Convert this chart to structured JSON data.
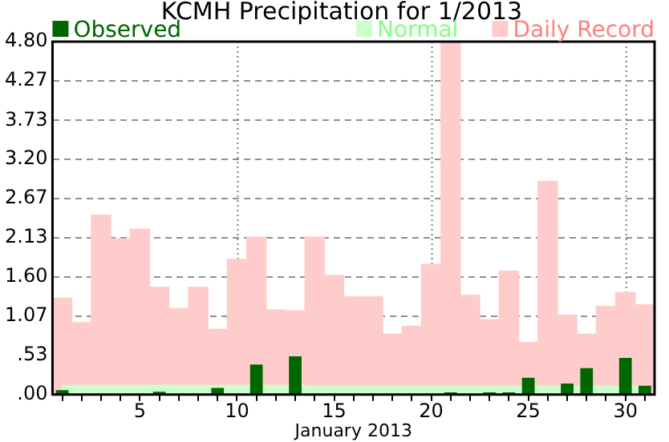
{
  "chart_data": {
    "type": "bar",
    "title": "KCMH Precipitation for 1/2013",
    "xlabel": "January 2013",
    "categories": [
      null,
      null,
      null,
      null,
      "5",
      null,
      null,
      null,
      null,
      "10",
      null,
      null,
      null,
      null,
      "15",
      null,
      null,
      null,
      null,
      "20",
      null,
      null,
      null,
      null,
      "25",
      null,
      null,
      null,
      null,
      "30",
      null
    ],
    "series": [
      {
        "name": "Daily Record",
        "color": "#ffcccc",
        "values": [
          1.31,
          0.98,
          2.44,
          2.12,
          2.25,
          1.46,
          1.17,
          1.46,
          0.89,
          1.84,
          2.14,
          1.15,
          1.14,
          2.14,
          1.62,
          1.33,
          1.33,
          0.82,
          0.93,
          1.77,
          4.8,
          1.35,
          1.02,
          1.68,
          0.71,
          2.9,
          1.08,
          0.82,
          1.2,
          1.39,
          1.22
        ]
      },
      {
        "name": "Normal",
        "type": "area",
        "color": "#ccffcc",
        "values": [
          0.12,
          0.12,
          0.12,
          0.12,
          0.12,
          0.12,
          0.12,
          0.12,
          0.12,
          0.12,
          0.12,
          0.12,
          0.12,
          0.11,
          0.11,
          0.11,
          0.11,
          0.11,
          0.11,
          0.11,
          0.11,
          0.11,
          0.11,
          0.11,
          0.11,
          0.11,
          0.11,
          0.11,
          0.11,
          0.11,
          0.11
        ]
      },
      {
        "name": "Observed",
        "color": "#006600",
        "values": [
          0.06,
          0,
          0,
          0,
          0,
          0.04,
          0,
          0,
          0.09,
          0,
          0.41,
          0,
          0.52,
          0,
          0,
          0,
          0,
          0,
          0,
          0,
          0.03,
          0,
          0.03,
          0.03,
          0.23,
          0,
          0.15,
          0.36,
          0,
          0.5,
          0.12
        ]
      }
    ],
    "ylim": [
      0,
      4.8
    ],
    "yticks": [
      {
        "value": 0,
        "label": ".00"
      },
      {
        "value": 0.53,
        "label": ".53"
      },
      {
        "value": 1.07,
        "label": "1.07"
      },
      {
        "value": 1.6,
        "label": "1.60"
      },
      {
        "value": 2.13,
        "label": "2.13"
      },
      {
        "value": 2.67,
        "label": "2.67"
      },
      {
        "value": 3.2,
        "label": "3.20"
      },
      {
        "value": 3.73,
        "label": "3.73"
      },
      {
        "value": 4.27,
        "label": "4.27"
      },
      {
        "value": 4.8,
        "label": "4.80"
      }
    ],
    "grid": "y",
    "legend": "top",
    "ref_lines": [
      {
        "axis": "x",
        "value": "10",
        "line_style": "dotted"
      },
      {
        "axis": "x",
        "value": "20",
        "line_style": "dotted"
      },
      {
        "axis": "x",
        "value": "30",
        "line_style": "dotted"
      }
    ]
  }
}
